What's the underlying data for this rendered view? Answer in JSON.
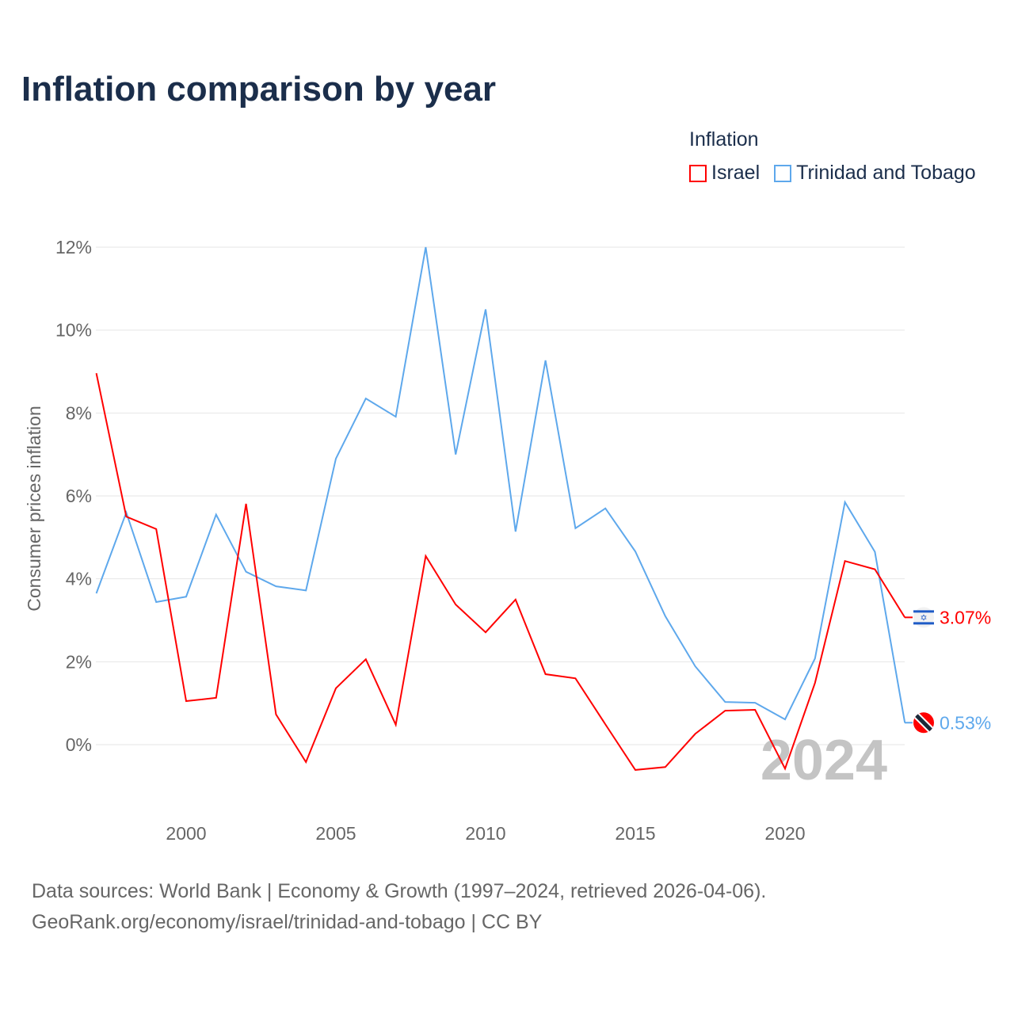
{
  "chart_data": {
    "type": "line",
    "title": "Inflation comparison by year",
    "ylabel": "Consumer prices inflation",
    "xlabel": "",
    "legend_title": "Inflation",
    "legend_position": "top-right",
    "ylim": [
      -1.5,
      12
    ],
    "xlim": [
      1997,
      2024
    ],
    "yticks": [
      0,
      2,
      4,
      6,
      8,
      10,
      12
    ],
    "ytick_labels": [
      "0%",
      "2%",
      "4%",
      "6%",
      "8%",
      "10%",
      "12%"
    ],
    "xticks": [
      2000,
      2005,
      2010,
      2015,
      2020
    ],
    "xtick_labels": [
      "2000",
      "2005",
      "2010",
      "2015",
      "2020"
    ],
    "grid": true,
    "year_watermark": "2024",
    "x": [
      1997,
      1998,
      1999,
      2000,
      2001,
      2002,
      2003,
      2004,
      2005,
      2006,
      2007,
      2008,
      2009,
      2010,
      2011,
      2012,
      2013,
      2014,
      2015,
      2016,
      2017,
      2018,
      2019,
      2020,
      2021,
      2022,
      2023,
      2024
    ],
    "series": [
      {
        "name": "Israel",
        "color": "#ff0000",
        "end_label": "3.07%",
        "flag": "israel-flag",
        "values": [
          8.96,
          5.5,
          5.2,
          1.05,
          1.13,
          5.81,
          0.73,
          -0.42,
          1.36,
          2.06,
          0.48,
          4.55,
          3.38,
          2.71,
          3.5,
          1.7,
          1.6,
          0.49,
          -0.61,
          -0.54,
          0.26,
          0.82,
          0.84,
          -0.58,
          1.49,
          4.43,
          4.23,
          3.07
        ]
      },
      {
        "name": "Trinidad and Tobago",
        "color": "#5ea8ec",
        "end_label": "0.53%",
        "flag": "trinidad-flag",
        "values": [
          3.65,
          5.6,
          3.44,
          3.57,
          5.55,
          4.17,
          3.82,
          3.72,
          6.9,
          8.35,
          7.91,
          12.0,
          7.0,
          10.5,
          5.14,
          9.27,
          5.22,
          5.7,
          4.66,
          3.1,
          1.89,
          1.03,
          1.01,
          0.61,
          2.08,
          5.85,
          4.65,
          0.53
        ]
      }
    ]
  },
  "source_line1": "Data sources: World Bank | Economy & Growth (1997–2024, retrieved 2026-04-06).",
  "source_line2": "GeoRank.org/economy/israel/trinidad-and-tobago | CC BY"
}
